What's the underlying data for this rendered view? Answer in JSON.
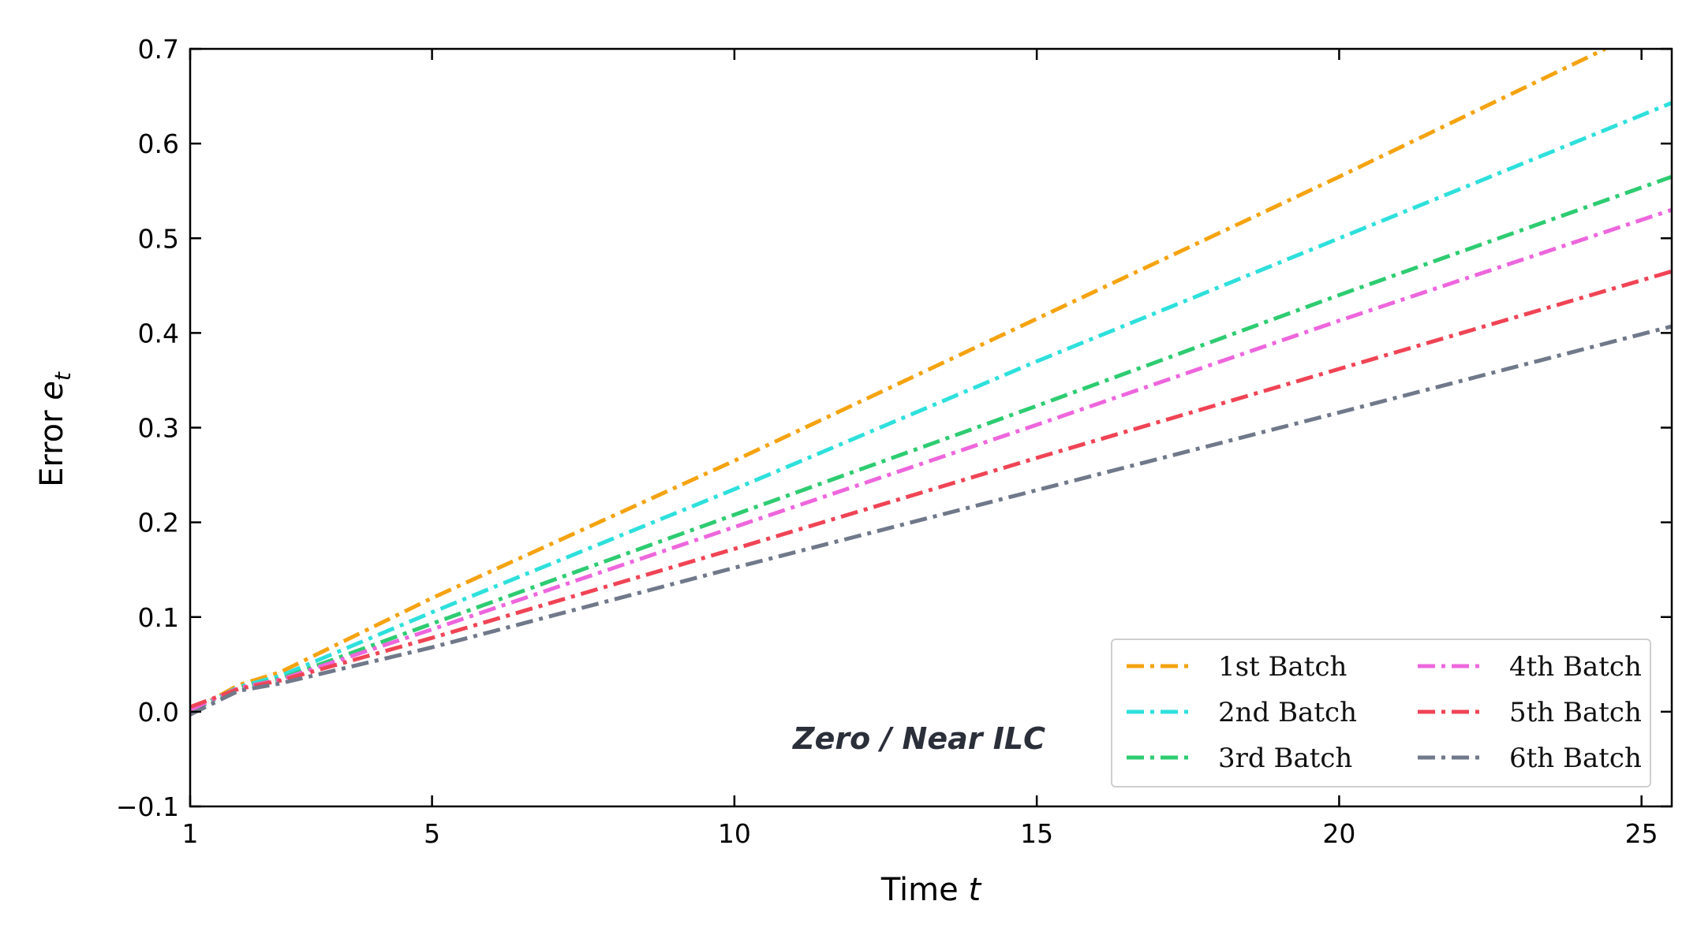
{
  "chart_data": {
    "type": "line",
    "xlabel": "Time",
    "xlabel_var": "t",
    "ylabel": "Error",
    "ylabel_var": "e",
    "ylabel_sub": "t",
    "xlim": [
      1,
      25.5
    ],
    "ylim": [
      -0.1,
      0.7
    ],
    "xticks": [
      1,
      5,
      10,
      15,
      20,
      25
    ],
    "yticks": [
      -0.1,
      0.0,
      0.1,
      0.2,
      0.3,
      0.4,
      0.5,
      0.6,
      0.7
    ],
    "ytick_labels": [
      "−0.1",
      "0.0",
      "0.1",
      "0.2",
      "0.3",
      "0.4",
      "0.5",
      "0.6",
      "0.7"
    ],
    "grid": false,
    "legend_position": "lower-right",
    "annotation": "Zero / Near ILC",
    "series": [
      {
        "name": "1st Batch",
        "color": "#f5a310",
        "x": [
          1,
          1.8,
          2.5,
          5,
          10,
          15,
          20,
          24.4
        ],
        "y": [
          0.0,
          0.028,
          0.042,
          0.12,
          0.265,
          0.415,
          0.565,
          0.7
        ]
      },
      {
        "name": "2nd Batch",
        "color": "#2ee0dc",
        "x": [
          1,
          1.8,
          2.5,
          5,
          10,
          15,
          20,
          25.5
        ],
        "y": [
          0.0,
          0.026,
          0.038,
          0.105,
          0.235,
          0.37,
          0.5,
          0.643
        ]
      },
      {
        "name": "3rd Batch",
        "color": "#2ecc71",
        "x": [
          1,
          1.8,
          2.5,
          5,
          10,
          15,
          20,
          25.5
        ],
        "y": [
          0.0,
          0.025,
          0.035,
          0.093,
          0.208,
          0.323,
          0.44,
          0.565
        ]
      },
      {
        "name": "4th Batch",
        "color": "#ee66dd",
        "x": [
          1,
          1.8,
          2.5,
          5,
          10,
          15,
          20,
          25.5
        ],
        "y": [
          0.002,
          0.025,
          0.034,
          0.087,
          0.195,
          0.303,
          0.413,
          0.53
        ]
      },
      {
        "name": "5th Batch",
        "color": "#f04455",
        "x": [
          1,
          1.8,
          2.5,
          5,
          10,
          15,
          20,
          25.5
        ],
        "y": [
          0.005,
          0.024,
          0.033,
          0.078,
          0.172,
          0.268,
          0.362,
          0.465
        ]
      },
      {
        "name": "6th Batch",
        "color": "#70798a",
        "x": [
          1,
          1.8,
          2.5,
          5,
          10,
          15,
          20,
          25.5
        ],
        "y": [
          -0.003,
          0.022,
          0.03,
          0.068,
          0.152,
          0.234,
          0.316,
          0.407
        ]
      }
    ]
  }
}
